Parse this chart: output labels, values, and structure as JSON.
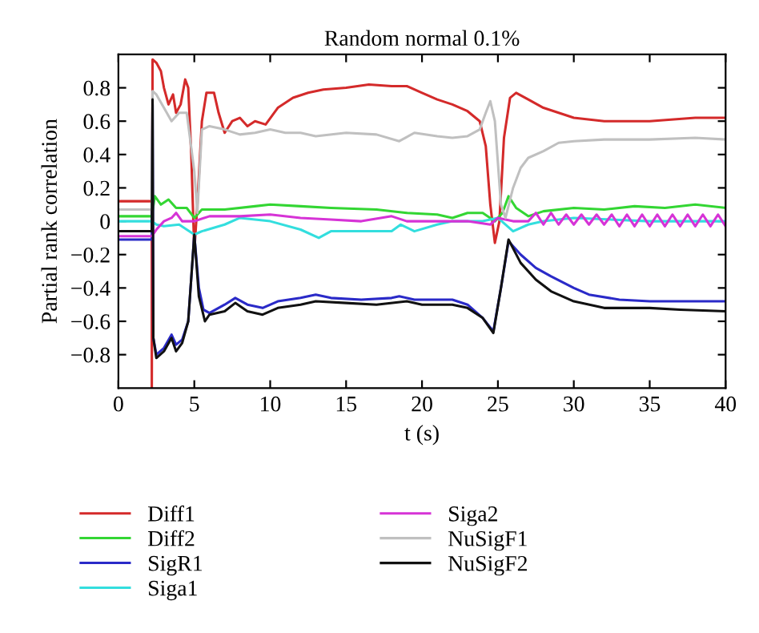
{
  "chart_data": {
    "type": "line",
    "title": "Random normal 0.1%",
    "xlabel": "t (s)",
    "ylabel": "Partial rank correlation",
    "xlim": [
      0,
      40
    ],
    "xticks": [
      0,
      5,
      10,
      15,
      20,
      25,
      30,
      35,
      40
    ],
    "ylim": [
      -1,
      1
    ],
    "yticks": [
      {
        "value": -0.8,
        "label": "−0.8"
      },
      {
        "value": -0.6,
        "label": "−0.6"
      },
      {
        "value": -0.4,
        "label": "−0.4"
      },
      {
        "value": -0.2,
        "label": "−0.2"
      },
      0,
      0.2,
      0.4,
      0.6,
      0.8
    ],
    "grid": false,
    "legend": "bottom",
    "line_style": "solid",
    "series": [
      {
        "name": "Diff1",
        "color": "#d42a2a",
        "x": [
          0,
          2.2,
          2.2,
          2.25,
          2.5,
          2.8,
          3.0,
          3.3,
          3.6,
          3.8,
          4.1,
          4.4,
          4.6,
          4.8,
          5.0,
          5.2,
          5.5,
          5.8,
          6.3,
          6.6,
          7.0,
          7.5,
          8.0,
          8.5,
          9.0,
          9.7,
          10.5,
          11.5,
          12.5,
          13.5,
          15,
          16.5,
          18,
          19,
          20,
          21,
          22,
          23,
          23.8,
          24.2,
          24.5,
          24.8,
          25.1,
          25.4,
          25.8,
          26.2,
          27,
          28,
          29,
          30,
          32,
          35,
          38,
          40
        ],
        "values": [
          0.12,
          0.12,
          -1,
          0.97,
          0.95,
          0.9,
          0.8,
          0.7,
          0.76,
          0.65,
          0.7,
          0.85,
          0.8,
          0.4,
          -0.18,
          0.1,
          0.6,
          0.77,
          0.77,
          0.65,
          0.53,
          0.6,
          0.62,
          0.57,
          0.6,
          0.58,
          0.68,
          0.74,
          0.77,
          0.79,
          0.8,
          0.82,
          0.81,
          0.81,
          0.77,
          0.73,
          0.7,
          0.66,
          0.6,
          0.45,
          0.1,
          -0.13,
          0.0,
          0.5,
          0.74,
          0.77,
          0.73,
          0.68,
          0.65,
          0.62,
          0.6,
          0.6,
          0.62,
          0.62
        ]
      },
      {
        "name": "Diff2",
        "color": "#33d633",
        "x": [
          0,
          2.2,
          2.4,
          2.8,
          3.3,
          3.8,
          4.5,
          5,
          5.5,
          7,
          9,
          10,
          12,
          14,
          17,
          19,
          21,
          22,
          23,
          24,
          24.8,
          25.3,
          25.7,
          26.2,
          27,
          28,
          30,
          32,
          34,
          36,
          38,
          40
        ],
        "values": [
          0.03,
          0.03,
          0.15,
          0.1,
          0.13,
          0.08,
          0.08,
          0.02,
          0.07,
          0.07,
          0.09,
          0.1,
          0.09,
          0.08,
          0.07,
          0.05,
          0.04,
          0.02,
          0.05,
          0.05,
          0.0,
          0.05,
          0.15,
          0.08,
          0.03,
          0.06,
          0.08,
          0.07,
          0.09,
          0.08,
          0.1,
          0.08
        ]
      },
      {
        "name": "SigR1",
        "color": "#2a2ac8",
        "x": [
          0,
          2.2,
          2.25,
          2.3,
          2.5,
          3,
          3.5,
          3.8,
          4.2,
          4.6,
          5,
          5.3,
          5.6,
          6,
          7,
          7.7,
          8.5,
          9.5,
          10.5,
          12,
          13,
          14,
          16,
          18,
          18.5,
          19.5,
          21,
          22,
          23,
          24,
          24.7,
          25.2,
          25.7,
          26.5,
          27.5,
          28.5,
          30,
          31,
          33,
          35,
          37,
          40
        ],
        "values": [
          -0.11,
          -0.11,
          0.7,
          -0.7,
          -0.8,
          -0.76,
          -0.68,
          -0.74,
          -0.71,
          -0.6,
          -0.08,
          -0.4,
          -0.53,
          -0.55,
          -0.5,
          -0.46,
          -0.5,
          -0.52,
          -0.48,
          -0.46,
          -0.44,
          -0.46,
          -0.47,
          -0.46,
          -0.45,
          -0.47,
          -0.47,
          -0.47,
          -0.5,
          -0.58,
          -0.66,
          -0.4,
          -0.12,
          -0.2,
          -0.28,
          -0.33,
          -0.4,
          -0.44,
          -0.47,
          -0.48,
          -0.48,
          -0.48
        ]
      },
      {
        "name": "Siga1",
        "color": "#33dede",
        "x": [
          0,
          2.2,
          2.5,
          3,
          4,
          5,
          5.5,
          7,
          8,
          10,
          12,
          13.2,
          14,
          16,
          18,
          18.6,
          19.5,
          21,
          22,
          23,
          24,
          25,
          26,
          27,
          28,
          30,
          35,
          40
        ],
        "values": [
          0,
          0,
          -0.02,
          -0.03,
          -0.02,
          -0.08,
          -0.06,
          -0.02,
          0.02,
          0.0,
          -0.05,
          -0.1,
          -0.06,
          -0.06,
          -0.06,
          -0.02,
          -0.06,
          -0.02,
          0.0,
          0.0,
          0.0,
          0.02,
          -0.06,
          -0.02,
          0.0,
          0.02,
          0.0,
          0.0
        ]
      },
      {
        "name": "Siga2",
        "color": "#d633d6",
        "x": [
          0,
          2.2,
          2.5,
          3,
          3.5,
          3.8,
          4.2,
          5,
          6,
          8,
          10,
          12,
          14,
          16,
          18,
          19,
          21,
          23,
          24.5,
          25,
          26,
          27,
          27.5,
          28,
          28.5,
          29,
          29.5,
          30,
          30.5,
          31,
          31.5,
          32,
          32.5,
          33,
          33.5,
          34,
          34.5,
          35,
          35.5,
          36,
          36.5,
          37,
          37.5,
          38,
          38.5,
          39,
          39.5,
          40
        ],
        "values": [
          -0.09,
          -0.09,
          -0.05,
          0.0,
          0.02,
          0.05,
          0.0,
          0.0,
          0.03,
          0.03,
          0.04,
          0.02,
          0.01,
          0.0,
          0.03,
          0.0,
          0.0,
          0.0,
          -0.02,
          0.02,
          0.0,
          0.0,
          0.05,
          -0.02,
          0.05,
          -0.02,
          0.04,
          -0.02,
          0.04,
          -0.02,
          0.04,
          -0.02,
          0.04,
          -0.03,
          0.04,
          -0.03,
          0.04,
          -0.03,
          0.04,
          -0.03,
          0.04,
          -0.03,
          0.04,
          -0.03,
          0.04,
          -0.03,
          0.04,
          -0.03
        ]
      },
      {
        "name": "NuSigF1",
        "color": "#c0c0c0",
        "x": [
          0,
          2.2,
          2.25,
          2.5,
          3,
          3.5,
          4,
          4.5,
          5,
          5.2,
          5.5,
          6,
          7,
          8,
          9,
          10,
          11,
          12,
          13,
          15,
          17,
          18.5,
          19.5,
          21,
          22,
          23,
          23.8,
          24.2,
          24.5,
          24.8,
          25.2,
          25.5,
          26,
          26.5,
          27,
          28,
          29,
          30,
          32,
          35,
          38,
          40
        ],
        "values": [
          0.07,
          0.07,
          0.78,
          0.76,
          0.68,
          0.6,
          0.65,
          0.65,
          0.3,
          0.05,
          0.55,
          0.57,
          0.55,
          0.52,
          0.53,
          0.55,
          0.53,
          0.53,
          0.51,
          0.53,
          0.52,
          0.48,
          0.53,
          0.51,
          0.5,
          0.51,
          0.55,
          0.65,
          0.72,
          0.6,
          0.1,
          0.02,
          0.2,
          0.32,
          0.38,
          0.42,
          0.47,
          0.48,
          0.49,
          0.49,
          0.5,
          0.49
        ]
      },
      {
        "name": "NuSigF2",
        "color": "#111111",
        "x": [
          0,
          2.2,
          2.25,
          2.3,
          2.5,
          3,
          3.5,
          3.8,
          4.2,
          4.6,
          5,
          5.3,
          5.7,
          6,
          7,
          7.7,
          8.5,
          9.5,
          10.5,
          12,
          13,
          15,
          17,
          19,
          20,
          22,
          23,
          24,
          24.7,
          25.2,
          25.7,
          26.5,
          27.5,
          28.5,
          30,
          32,
          35,
          37,
          40
        ],
        "values": [
          -0.06,
          -0.06,
          0.73,
          -0.7,
          -0.82,
          -0.78,
          -0.7,
          -0.78,
          -0.73,
          -0.6,
          -0.08,
          -0.45,
          -0.6,
          -0.56,
          -0.54,
          -0.49,
          -0.54,
          -0.56,
          -0.52,
          -0.5,
          -0.48,
          -0.49,
          -0.5,
          -0.48,
          -0.5,
          -0.5,
          -0.52,
          -0.58,
          -0.67,
          -0.4,
          -0.11,
          -0.25,
          -0.35,
          -0.42,
          -0.48,
          -0.52,
          -0.52,
          -0.53,
          -0.54
        ]
      }
    ]
  }
}
